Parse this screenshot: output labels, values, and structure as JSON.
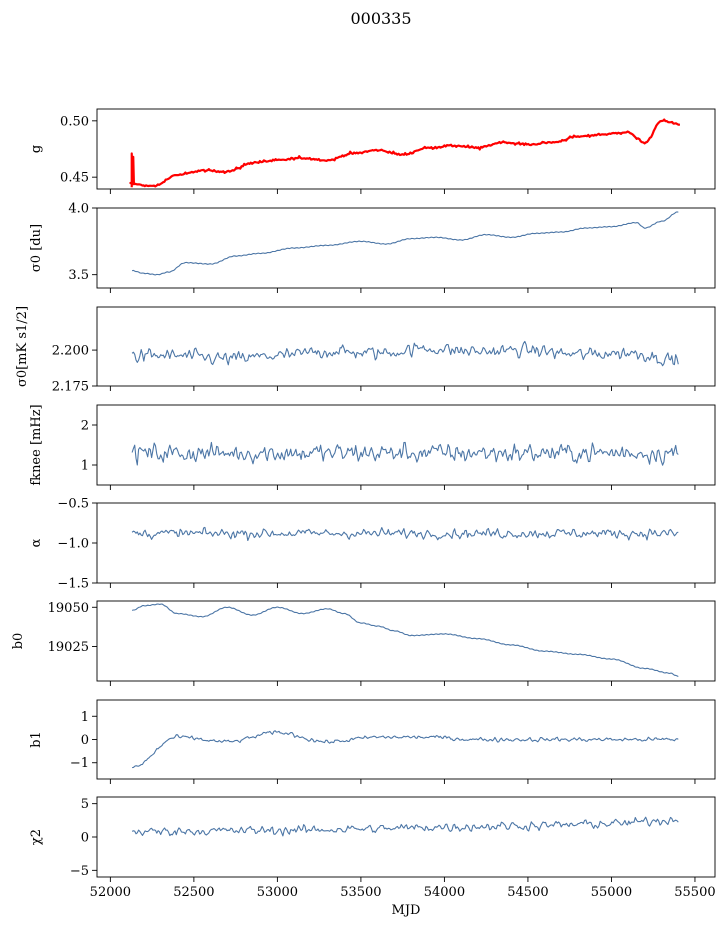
{
  "figure_title": "000335",
  "colors": {
    "series": "#4c76a6",
    "highlight": "#ff0000",
    "frame": "#000000"
  },
  "chart_data": [
    {
      "type": "line",
      "ylabel": "g",
      "ylim": [
        0.4395,
        0.5105
      ],
      "yticks": [
        0.45,
        0.5
      ],
      "ytick_labels": [
        "0.45",
        "0.50"
      ],
      "series": [
        {
          "shape": "sinusoid",
          "x": [
            52120,
            52260,
            52400,
            52560,
            52700,
            52860,
            53000,
            53150,
            53300,
            53450,
            53600,
            53750,
            53900,
            54050,
            54200,
            54350,
            54500,
            54650,
            54800,
            54950,
            55100,
            55150,
            55200,
            55300,
            55410
          ],
          "y": [
            0.444,
            0.442,
            0.452,
            0.456,
            0.455,
            0.463,
            0.465,
            0.467,
            0.465,
            0.471,
            0.474,
            0.47,
            0.476,
            0.478,
            0.476,
            0.481,
            0.479,
            0.481,
            0.486,
            0.488,
            0.49,
            0.485,
            0.48,
            0.5,
            0.497
          ]
        },
        {
          "shape": "sinusoid",
          "x": [
            52120,
            52260,
            52400,
            52560,
            52700,
            52860,
            53000,
            53150,
            53300,
            53450,
            53600,
            53750,
            53900,
            54050,
            54200,
            54350,
            54500,
            54650,
            54800,
            54950,
            55100,
            55150,
            55200,
            55300,
            55410
          ],
          "y": [
            0.444,
            0.442,
            0.452,
            0.456,
            0.455,
            0.463,
            0.465,
            0.467,
            0.465,
            0.471,
            0.474,
            0.47,
            0.476,
            0.478,
            0.476,
            0.481,
            0.479,
            0.481,
            0.486,
            0.488,
            0.49,
            0.485,
            0.48,
            0.5,
            0.497
          ]
        }
      ]
    },
    {
      "type": "line",
      "ylabel": "σ0 [du]",
      "ylim": [
        3.4,
        4.0
      ],
      "yticks": [
        3.5,
        4.0
      ],
      "ytick_labels": [
        "3.5",
        "4.0"
      ],
      "series": [
        {
          "shape": "smooth",
          "x": [
            52130,
            52200,
            52280,
            52350,
            52450,
            52600,
            52750,
            52900,
            53100,
            53300,
            53500,
            53650,
            53800,
            53950,
            54100,
            54250,
            54400,
            54550,
            54700,
            54850,
            55000,
            55150,
            55200,
            55300,
            55400
          ],
          "y": [
            3.53,
            3.51,
            3.5,
            3.52,
            3.59,
            3.58,
            3.64,
            3.66,
            3.7,
            3.72,
            3.75,
            3.73,
            3.77,
            3.78,
            3.76,
            3.8,
            3.78,
            3.81,
            3.82,
            3.85,
            3.86,
            3.89,
            3.85,
            3.9,
            3.97
          ]
        }
      ]
    },
    {
      "type": "line",
      "ylabel": "σ0[mK s1/2]",
      "ylim": [
        2.175,
        2.23
      ],
      "yticks": [
        2.175,
        2.2
      ],
      "ytick_labels": [
        "2.175",
        "2.200"
      ],
      "series": [
        {
          "shape": "noise",
          "x": [
            52130,
            52400,
            52700,
            53000,
            53300,
            53600,
            53900,
            54200,
            54500,
            54800,
            55100,
            55400
          ],
          "y": [
            2.196,
            2.196,
            2.194,
            2.196,
            2.199,
            2.198,
            2.201,
            2.199,
            2.2,
            2.197,
            2.198,
            2.193
          ]
        }
      ]
    },
    {
      "type": "line",
      "ylabel": "fknee [mHz]",
      "ylim": [
        0.5,
        2.5
      ],
      "yticks": [
        1,
        2
      ],
      "ytick_labels": [
        "1",
        "2"
      ],
      "series": [
        {
          "shape": "noise",
          "x": [
            52130,
            55400
          ],
          "y": [
            1.3,
            1.3
          ]
        }
      ]
    },
    {
      "type": "line",
      "ylabel": "α",
      "ylim": [
        -1.5,
        -0.5
      ],
      "yticks": [
        -1.5,
        -1.0,
        -0.5
      ],
      "ytick_labels": [
        "−1.5",
        "−1.0",
        "−0.5"
      ],
      "series": [
        {
          "shape": "noise",
          "x": [
            52130,
            55400
          ],
          "y": [
            -0.88,
            -0.88
          ]
        }
      ]
    },
    {
      "type": "line",
      "ylabel": "b0",
      "ylim": [
        19003,
        19054
      ],
      "yticks": [
        19025,
        19050
      ],
      "ytick_labels": [
        "19025",
        "19050"
      ],
      "series": [
        {
          "shape": "smooth",
          "x": [
            52130,
            52200,
            52300,
            52400,
            52550,
            52700,
            52850,
            53000,
            53150,
            53300,
            53400,
            53500,
            53600,
            53700,
            53800,
            54000,
            54200,
            54400,
            54600,
            54800,
            55000,
            55200,
            55350,
            55400
          ],
          "y": [
            19048,
            19051,
            19052,
            19046,
            19044,
            19050,
            19045,
            19050,
            19046,
            19049,
            19046,
            19040,
            19038,
            19035,
            19032,
            19033,
            19030,
            19026,
            19022,
            19020,
            19017,
            19011,
            19008,
            19006
          ]
        }
      ]
    },
    {
      "type": "line",
      "ylabel": "b1",
      "ylim": [
        -1.7,
        1.7
      ],
      "yticks": [
        -1,
        0,
        1
      ],
      "ytick_labels": [
        "−1",
        "0",
        "1"
      ],
      "series": [
        {
          "shape": "noise",
          "x": [
            52130,
            52400,
            52700,
            53000,
            53300,
            53600,
            53900,
            54200,
            54500,
            54800,
            55100,
            55400
          ],
          "y": [
            -1.2,
            0.1,
            -0.1,
            0.3,
            -0.1,
            0.1,
            0.1,
            0.0,
            0.0,
            0.0,
            0.0,
            0.0
          ]
        }
      ]
    },
    {
      "type": "line",
      "ylabel": "χ2",
      "ylim": [
        -6,
        6
      ],
      "yticks": [
        -5,
        0,
        5
      ],
      "ytick_labels": [
        "−5",
        "0",
        "5"
      ],
      "xticks": [
        52000,
        52500,
        53000,
        53500,
        54000,
        54500,
        55000,
        55500
      ],
      "xtick_labels": [
        "52000",
        "52500",
        "53000",
        "53500",
        "54000",
        "54500",
        "55000",
        "55500"
      ],
      "xlabel": "MJD",
      "series": [
        {
          "shape": "noise",
          "x": [
            52130,
            52500,
            53000,
            53500,
            54000,
            54500,
            55000,
            55400
          ],
          "y": [
            0.8,
            0.9,
            1.0,
            1.2,
            1.5,
            1.7,
            2.0,
            2.6
          ]
        }
      ]
    }
  ]
}
